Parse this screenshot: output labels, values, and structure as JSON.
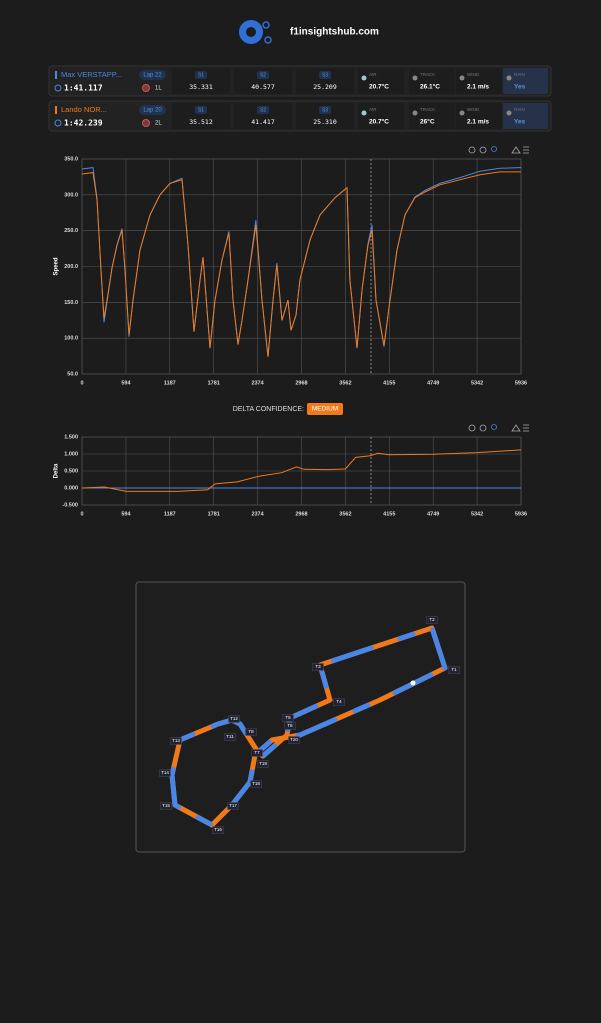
{
  "header": {
    "site": "f1insightshub.com"
  },
  "drivers": [
    {
      "name": "Max VERSTAPP...",
      "color": "#4a86e8",
      "lap": "Lap 22",
      "lap_time": "1:41.117",
      "tyre": "1L",
      "sectors": [
        {
          "label": "S1",
          "value": "35.331"
        },
        {
          "label": "S2",
          "value": "40.577"
        },
        {
          "label": "S3",
          "value": "25.209"
        }
      ],
      "weather": [
        {
          "label": "AIR",
          "value": "20.7°C"
        },
        {
          "label": "TRACK",
          "value": "26.1°C"
        },
        {
          "label": "WIND",
          "value": "2.1 m/s"
        },
        {
          "label": "RAIN",
          "value": "Yes"
        }
      ]
    },
    {
      "name": "Lando NOR...",
      "color": "#f07a1a",
      "lap": "Lap 20",
      "lap_time": "1:42.239",
      "tyre": "2L",
      "sectors": [
        {
          "label": "S1",
          "value": "35.512"
        },
        {
          "label": "S2",
          "value": "41.417"
        },
        {
          "label": "S3",
          "value": "25.310"
        }
      ],
      "weather": [
        {
          "label": "AIR",
          "value": "20.7°C"
        },
        {
          "label": "TRACK",
          "value": "26°C"
        },
        {
          "label": "WIND",
          "value": "2.1 m/s"
        },
        {
          "label": "RAIN",
          "value": "Yes"
        }
      ]
    }
  ],
  "delta_confidence": {
    "label": "DELTA CONFIDENCE:",
    "level": "MEDIUM"
  },
  "chart_data": [
    {
      "type": "line",
      "y_label": "Speed",
      "grid": true,
      "x": [
        0,
        149,
        203,
        257,
        297,
        338,
        406,
        473,
        541,
        581,
        635,
        690,
        784,
        919,
        1055,
        1190,
        1352,
        1433,
        1514,
        1595,
        1636,
        1731,
        1798,
        1893,
        1987,
        2042,
        2109,
        2163,
        2244,
        2352,
        2434,
        2515,
        2582,
        2636,
        2704,
        2785,
        2826,
        2893,
        2947,
        3083,
        3218,
        3421,
        3583,
        3623,
        3718,
        3786,
        3867,
        3921,
        3975,
        4083,
        4164,
        4259,
        4367,
        4502,
        4637,
        4840,
        5110,
        5381,
        5651,
        5936
      ],
      "xlim": [
        0,
        5936
      ],
      "xticks": [
        0,
        594,
        1187,
        1781,
        2374,
        2968,
        3562,
        4155,
        4749,
        5342,
        5936
      ],
      "ylim": [
        50,
        350
      ],
      "yticks": [
        {
          "value": 50,
          "label": "50.0"
        },
        {
          "value": 100,
          "label": "100.0"
        },
        {
          "value": 150,
          "label": "150.0"
        },
        {
          "value": 200,
          "label": "200.0"
        },
        {
          "value": 250,
          "label": "250.0"
        },
        {
          "value": 300,
          "label": "300.0"
        },
        {
          "value": 350,
          "label": "350.0"
        }
      ],
      "series": [
        {
          "color": "#4a86e8",
          "values": [
            336,
            338,
            295,
            195,
            122,
            150,
            198,
            230,
            253,
            195,
            102,
            153,
            223,
            272,
            300,
            316,
            323,
            230,
            109,
            181,
            213,
            86,
            153,
            209,
            249,
            153,
            91,
            125,
            181,
            265,
            153,
            74,
            153,
            205,
            125,
            153,
            111,
            132,
            181,
            237,
            272,
            296,
            310,
            181,
            86,
            167,
            232,
            258,
            153,
            88,
            153,
            223,
            272,
            297,
            306,
            316,
            324,
            333,
            337,
            338
          ]
        },
        {
          "color": "#f07a1a",
          "values": [
            329,
            331,
            293,
            195,
            128,
            153,
            198,
            230,
            251,
            195,
            105,
            153,
            223,
            272,
            300,
            316,
            321,
            230,
            109,
            181,
            213,
            86,
            153,
            209,
            247,
            153,
            91,
            125,
            181,
            258,
            153,
            74,
            153,
            202,
            125,
            153,
            111,
            132,
            181,
            237,
            272,
            296,
            310,
            181,
            86,
            167,
            230,
            251,
            153,
            90,
            153,
            223,
            272,
            296,
            304,
            314,
            321,
            328,
            332,
            332
          ]
        }
      ]
    },
    {
      "type": "line",
      "y_label": "Delta",
      "grid": true,
      "x": [
        0,
        300,
        600,
        1000,
        1300,
        1700,
        1800,
        2100,
        2400,
        2700,
        2900,
        3000,
        3300,
        3562,
        3700,
        3900,
        4000,
        4155,
        4749,
        5342,
        5936
      ],
      "xlim": [
        0,
        5936
      ],
      "xticks": [
        0,
        594,
        1187,
        1781,
        2374,
        2968,
        3562,
        4155,
        4749,
        5342,
        5936
      ],
      "ylim": [
        -0.5,
        1.5
      ],
      "yticks": [
        {
          "value": -0.5,
          "label": "-0.500"
        },
        {
          "value": 0,
          "label": "0.000"
        },
        {
          "value": 0.5,
          "label": "0.500"
        },
        {
          "value": 1,
          "label": "1.000"
        },
        {
          "value": 1.5,
          "label": "1.500"
        }
      ],
      "series": [
        {
          "color": "#4a86e8",
          "values": [
            0,
            0,
            0,
            0,
            0,
            0,
            0,
            0,
            0,
            0,
            0,
            0,
            0,
            0,
            0,
            0,
            0,
            0,
            0,
            0,
            0
          ]
        },
        {
          "color": "#f07a1a",
          "values": [
            0,
            0.03,
            -0.1,
            -0.1,
            -0.1,
            -0.05,
            0.12,
            0.18,
            0.35,
            0.45,
            0.62,
            0.55,
            0.54,
            0.56,
            0.9,
            0.95,
            1.02,
            0.98,
            0.99,
            1.04,
            1.12
          ]
        }
      ]
    }
  ],
  "track": {
    "corners": [
      "T1",
      "T2",
      "T3",
      "T4",
      "T5",
      "T6",
      "T7",
      "T8",
      "T11",
      "T12",
      "T13",
      "T14",
      "T15",
      "T16",
      "T17",
      "T18",
      "T19",
      "T20"
    ]
  }
}
